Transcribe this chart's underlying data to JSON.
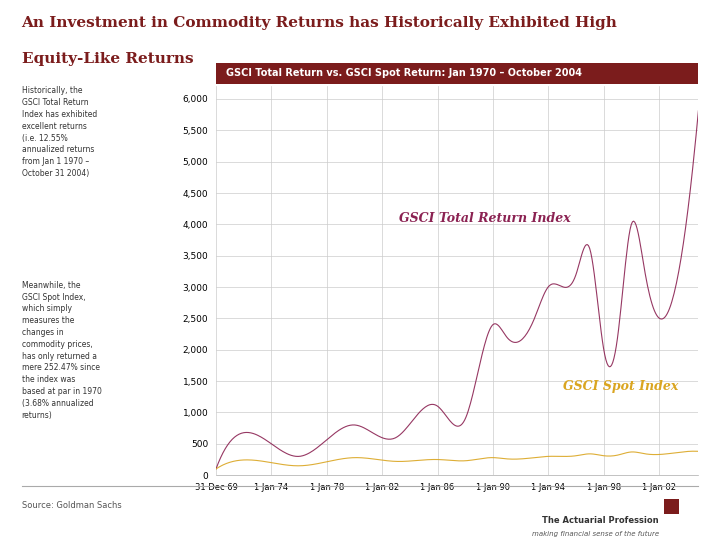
{
  "title_line1": "An Investment in Commodity Returns has Historically Exhibited High",
  "title_line2": "Equity-Like Returns",
  "title_color": "#7B1C1C",
  "chart_header": "GSCI Total Return vs. GSCI Spot Return: Jan 1970 – October 2004",
  "header_bg": "#7B1C1C",
  "header_text_color": "#FFFFFF",
  "left_text_1": "Historically, the\nGSCI Total Return\nIndex has exhibited\nexcellent returns\n(i.e. 12.55%\nannualized returns\nfrom Jan 1 1970 –\nOctober 31 2004)",
  "left_text_2": "Meanwhile, the\nGSCI Spot Index,\nwhich simply\nmeasures the\nchanges in\ncommodity prices,\nhas only returned a\nmere 252.47% since\nthe index was\nbased at par in 1970\n(3.68% annualized\nreturns)",
  "total_return_label": "GSCI Total Return Index",
  "spot_label": "GSCI Spot Index",
  "total_return_color": "#8B2252",
  "spot_color": "#DAA520",
  "yticks": [
    0,
    500,
    1000,
    1500,
    2000,
    2500,
    3000,
    3500,
    4000,
    4500,
    5000,
    5500,
    6000
  ],
  "xtick_labels": [
    "31 Dec 69",
    "1 Jan 74",
    "1 Jan 78",
    "1 Jan 82",
    "1 Jan 86",
    "1 Jan 90",
    "1 Jan 94",
    "1 Jan 98",
    "1 Jan 02"
  ],
  "source_text": "Source: Goldman Sachs",
  "bg_color": "#FFFFFF",
  "grid_color": "#CCCCCC",
  "actuarial_text": "The Actuarial Profession",
  "actuarial_sub": "making financial sense of the future",
  "actuarial_box_color": "#7B1C1C"
}
